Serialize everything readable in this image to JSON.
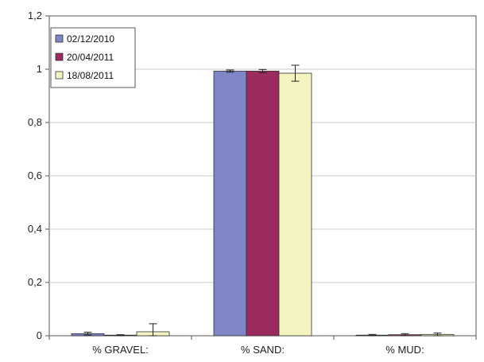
{
  "chart_data": {
    "type": "bar",
    "title": "",
    "xlabel": "",
    "ylabel": "",
    "categories": [
      "% GRAVEL:",
      "% SAND:",
      "% MUD:"
    ],
    "series": [
      {
        "name": "02/12/2010",
        "color": "#7f86c8",
        "values": [
          0.008,
          0.993,
          0.002
        ],
        "error": [
          0.005,
          0.004,
          0.003
        ]
      },
      {
        "name": "20/04/2011",
        "color": "#9b2a5e",
        "values": [
          0.002,
          0.993,
          0.004
        ],
        "error": [
          0.002,
          0.006,
          0.004
        ]
      },
      {
        "name": "18/08/2011",
        "color": "#f4f4c0",
        "values": [
          0.015,
          0.985,
          0.005
        ],
        "error": [
          0.03,
          0.03,
          0.005
        ]
      }
    ],
    "ylim": [
      0,
      1.2
    ],
    "yticks": [
      "0",
      "0,2",
      "0,4",
      "0,6",
      "0,8",
      "1",
      "1,2"
    ],
    "ytick_values": [
      0,
      0.2,
      0.4,
      0.6,
      0.8,
      1.0,
      1.2
    ],
    "grid": true,
    "legend_position": "top-left"
  }
}
